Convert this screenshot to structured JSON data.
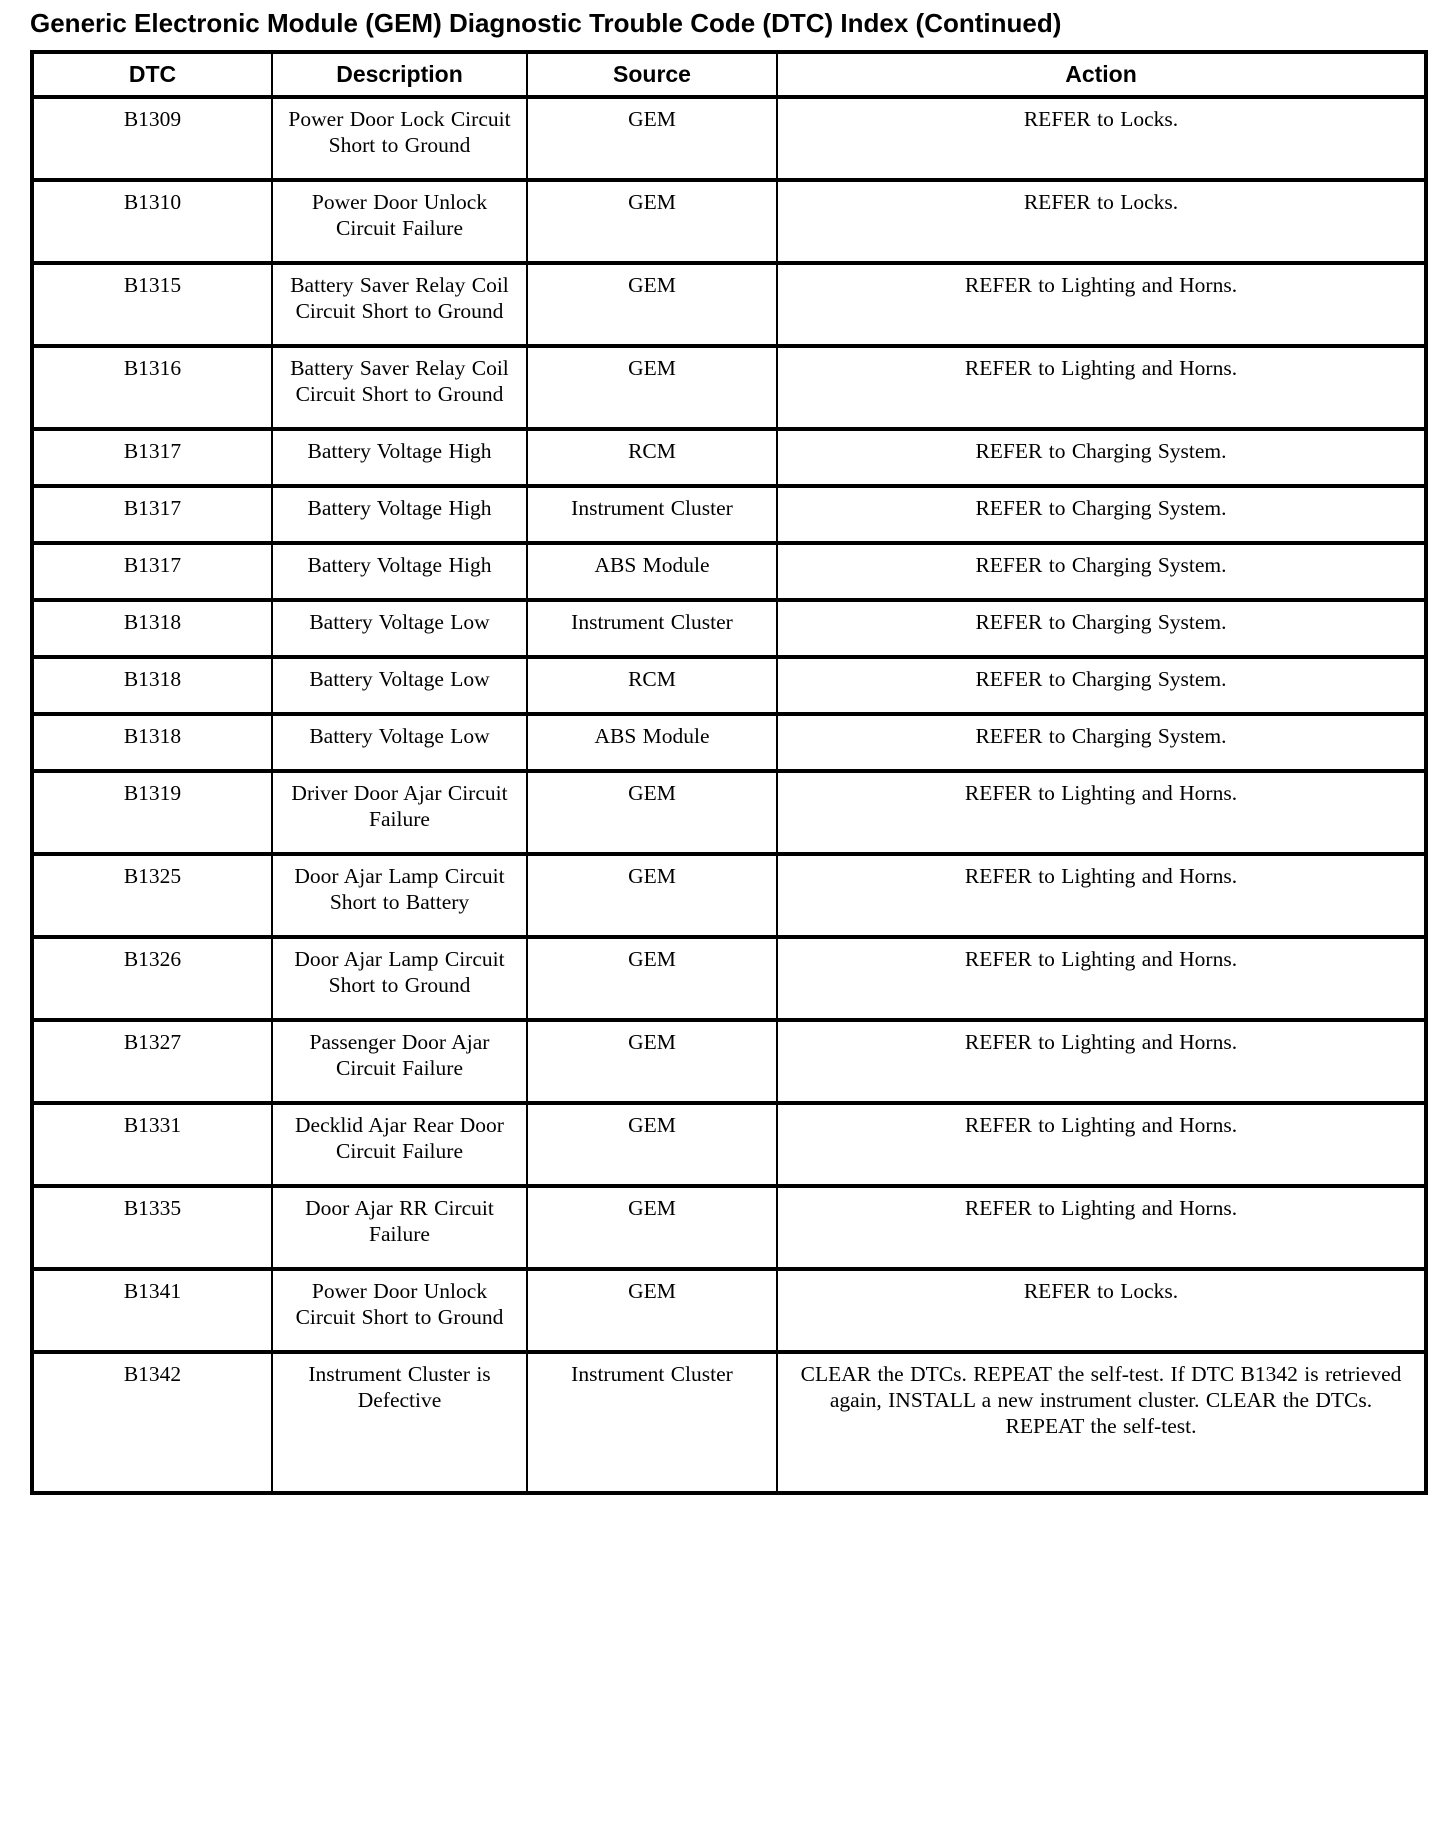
{
  "page": {
    "title": "Generic Electronic Module (GEM) Diagnostic Trouble Code (DTC) Index (Continued)"
  },
  "table": {
    "columns": [
      "DTC",
      "Description",
      "Source",
      "Action"
    ],
    "rows": [
      {
        "dtc": "B1309",
        "description": "Power Door Lock Circuit Short to Ground",
        "source": "GEM",
        "action": "REFER to Locks."
      },
      {
        "dtc": "B1310",
        "description": "Power Door Unlock Circuit Failure",
        "source": "GEM",
        "action": "REFER to Locks."
      },
      {
        "dtc": "B1315",
        "description": "Battery Saver Relay Coil Circuit Short to Ground",
        "source": "GEM",
        "action": "REFER to Lighting and Horns."
      },
      {
        "dtc": "B1316",
        "description": "Battery Saver Relay Coil Circuit Short to Ground",
        "source": "GEM",
        "action": "REFER to Lighting and Horns."
      },
      {
        "dtc": "B1317",
        "description": "Battery Voltage High",
        "source": "RCM",
        "action": "REFER to Charging System."
      },
      {
        "dtc": "B1317",
        "description": "Battery Voltage High",
        "source": "Instrument Cluster",
        "action": "REFER to Charging System."
      },
      {
        "dtc": "B1317",
        "description": "Battery Voltage High",
        "source": "ABS Module",
        "action": "REFER to Charging System."
      },
      {
        "dtc": "B1318",
        "description": "Battery Voltage Low",
        "source": "Instrument Cluster",
        "action": "REFER to Charging System."
      },
      {
        "dtc": "B1318",
        "description": "Battery Voltage Low",
        "source": "RCM",
        "action": "REFER to Charging System."
      },
      {
        "dtc": "B1318",
        "description": "Battery Voltage Low",
        "source": "ABS Module",
        "action": "REFER to Charging System."
      },
      {
        "dtc": "B1319",
        "description": "Driver Door Ajar Circuit Failure",
        "source": "GEM",
        "action": "REFER to Lighting and Horns."
      },
      {
        "dtc": "B1325",
        "description": "Door Ajar Lamp Circuit Short to Battery",
        "source": "GEM",
        "action": "REFER to Lighting and Horns."
      },
      {
        "dtc": "B1326",
        "description": "Door Ajar Lamp Circuit Short to Ground",
        "source": "GEM",
        "action": "REFER to Lighting and Horns."
      },
      {
        "dtc": "B1327",
        "description": "Passenger Door Ajar Circuit Failure",
        "source": "GEM",
        "action": "REFER to Lighting and Horns."
      },
      {
        "dtc": "B1331",
        "description": "Decklid Ajar Rear Door Circuit Failure",
        "source": "GEM",
        "action": "REFER to Lighting and Horns."
      },
      {
        "dtc": "B1335",
        "description": "Door Ajar RR Circuit Failure",
        "source": "GEM",
        "action": "REFER to Lighting and Horns."
      },
      {
        "dtc": "B1341",
        "description": "Power Door Unlock Circuit Short to Ground",
        "source": "GEM",
        "action": "REFER to Locks."
      },
      {
        "dtc": "B1342",
        "description": "Instrument Cluster is Defective",
        "source": "Instrument Cluster",
        "action": "CLEAR the DTCs. REPEAT the self-test. If DTC B1342 is retrieved again, INSTALL a new instrument cluster. CLEAR the DTCs. REPEAT the self-test."
      }
    ]
  }
}
